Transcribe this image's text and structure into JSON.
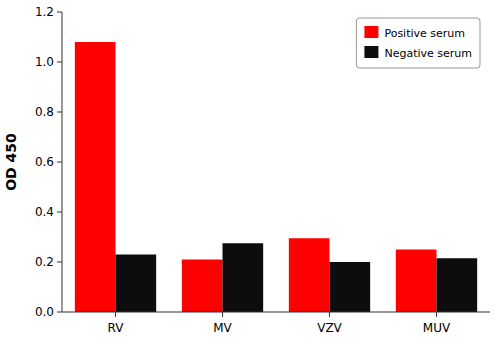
{
  "chart_data": {
    "type": "bar",
    "categories": [
      "RV",
      "MV",
      "VZV",
      "MUV"
    ],
    "series": [
      {
        "name": "Positive serum",
        "color": "#FF0000",
        "values": [
          1.08,
          0.21,
          0.295,
          0.25
        ]
      },
      {
        "name": "Negative serum",
        "color": "#0d0d0d",
        "values": [
          0.23,
          0.275,
          0.2,
          0.215
        ]
      }
    ],
    "ylabel": "OD 450",
    "ylim": [
      0.0,
      1.2
    ],
    "yticks": [
      {
        "value": 0,
        "label": "0.0"
      },
      0.2,
      0.4,
      0.6,
      0.8,
      {
        "value": 1,
        "label": "1.0"
      },
      1.2
    ],
    "legend": "top-right",
    "grid": false
  }
}
